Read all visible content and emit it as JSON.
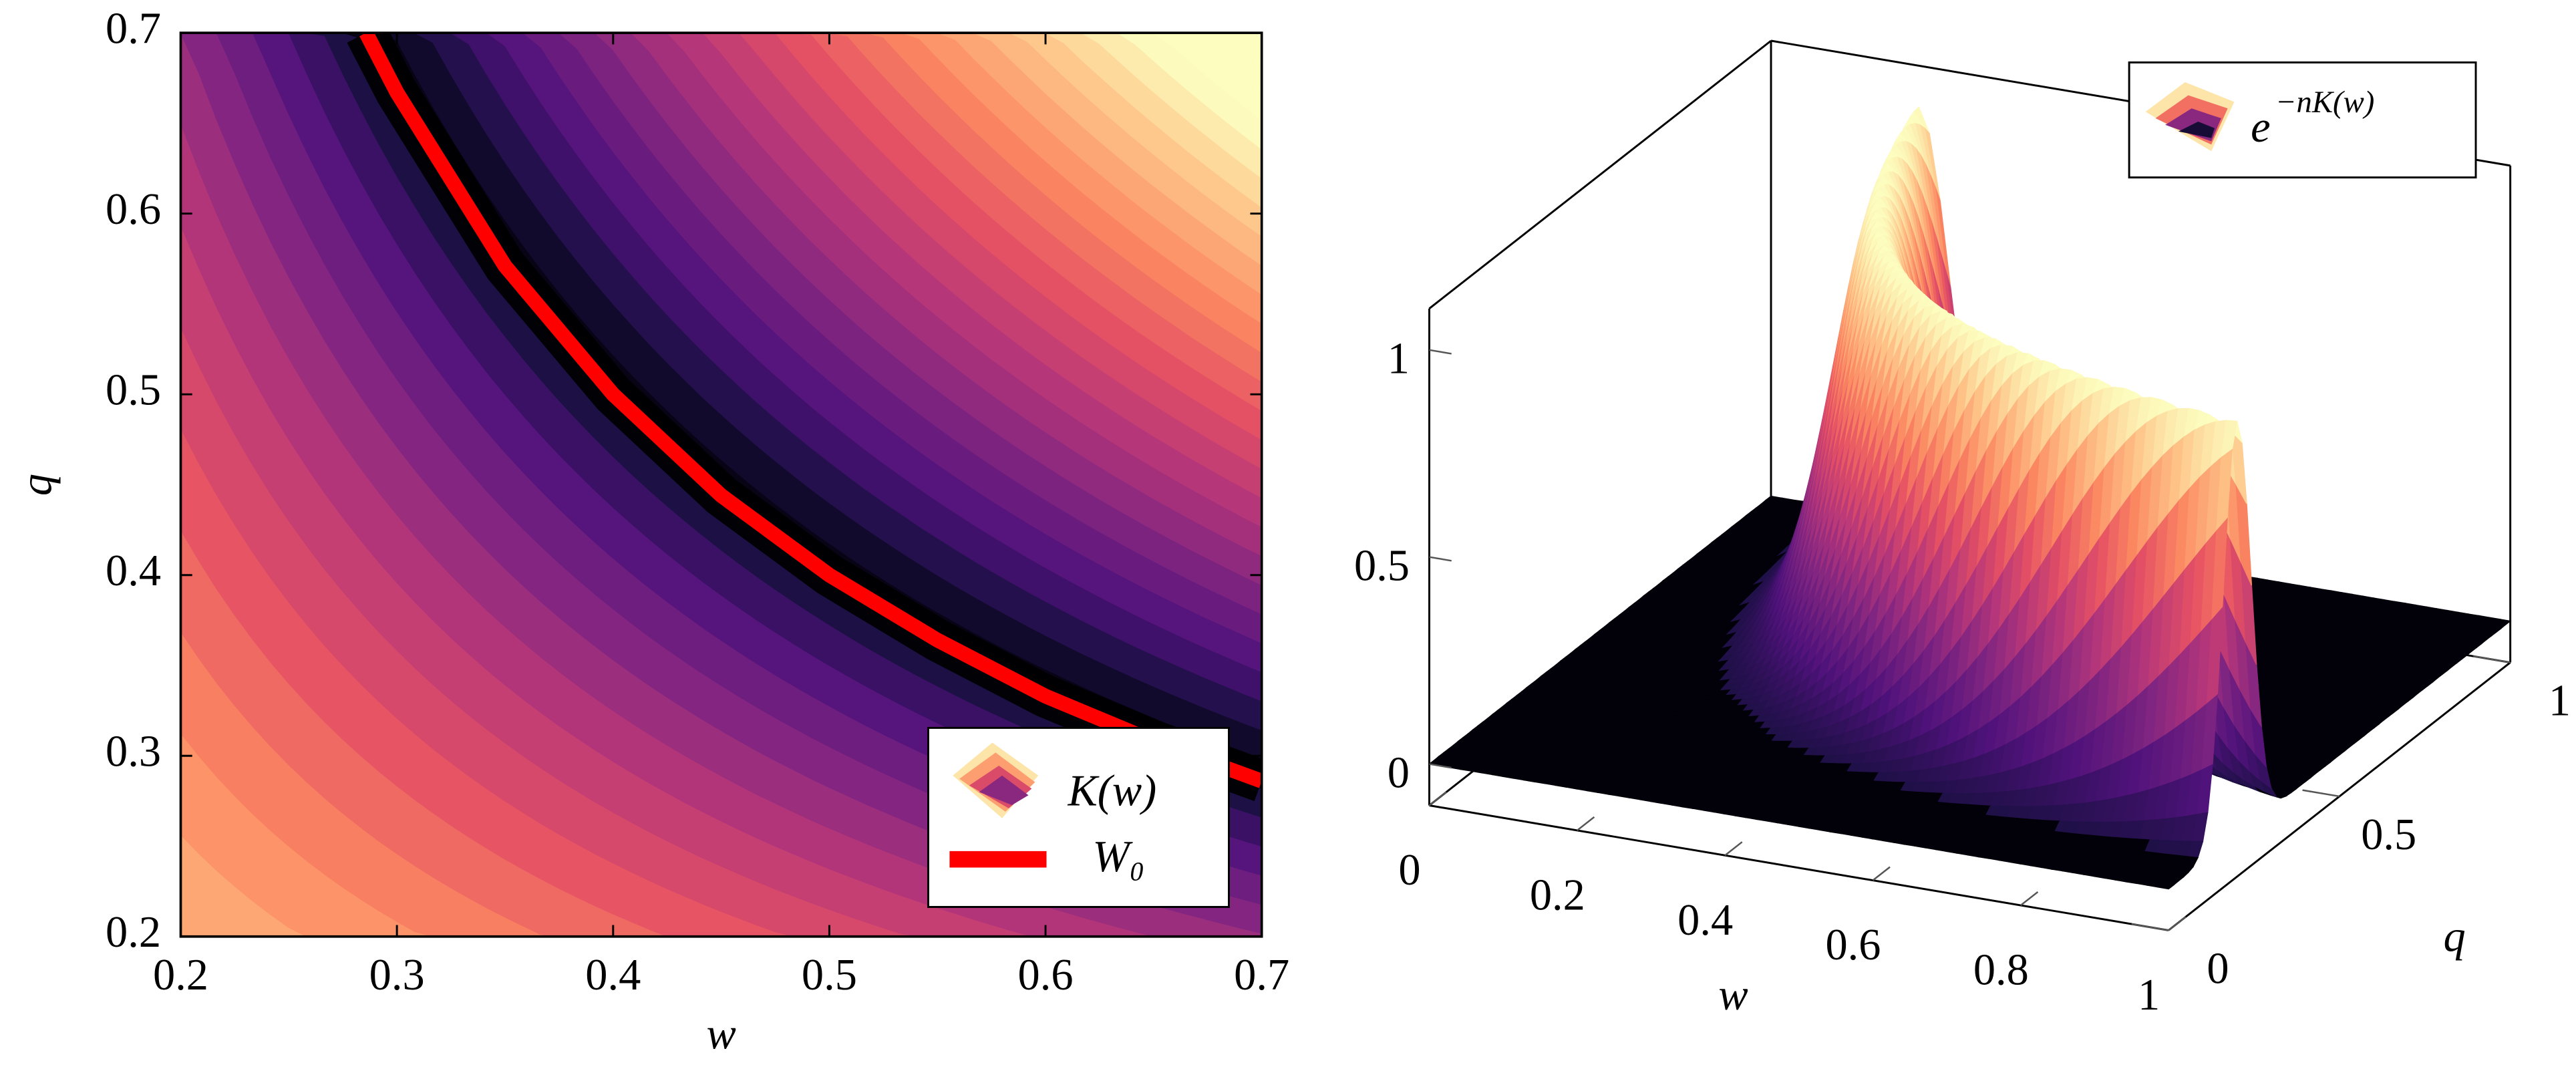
{
  "chart_data": [
    {
      "type": "contour",
      "xlabel": "w",
      "ylabel": "q",
      "xlim": [
        0.2,
        0.7
      ],
      "ylim": [
        0.2,
        0.7
      ],
      "xticks": [
        0.2,
        0.3,
        0.4,
        0.5,
        0.6,
        0.7
      ],
      "yticks": [
        0.2,
        0.3,
        0.4,
        0.5,
        0.6,
        0.7
      ],
      "legend_field": "K(w)",
      "legend_position": "lower right",
      "series": [
        {
          "name": "W₀",
          "color": "#ff0000",
          "x": [
            0.2857,
            0.3,
            0.35,
            0.4,
            0.45,
            0.5,
            0.55,
            0.6,
            0.65,
            0.7
          ],
          "values": [
            0.7,
            0.667,
            0.571,
            0.5,
            0.444,
            0.4,
            0.364,
            0.333,
            0.308,
            0.286
          ]
        }
      ]
    },
    {
      "type": "surface",
      "xlabel": "w",
      "ylabel": "q",
      "xlim": [
        0,
        1
      ],
      "ylim": [
        0,
        1
      ],
      "zlim": [
        -0.1,
        1.1
      ],
      "xticks": [
        0,
        0.2,
        0.4,
        0.6,
        0.8,
        1
      ],
      "yticks": [
        0,
        0.5,
        1
      ],
      "zticks": [
        0,
        0.5,
        1
      ],
      "legend_base": "e",
      "legend_exponent": "−nK(w)",
      "legend_position": "upper right"
    }
  ]
}
